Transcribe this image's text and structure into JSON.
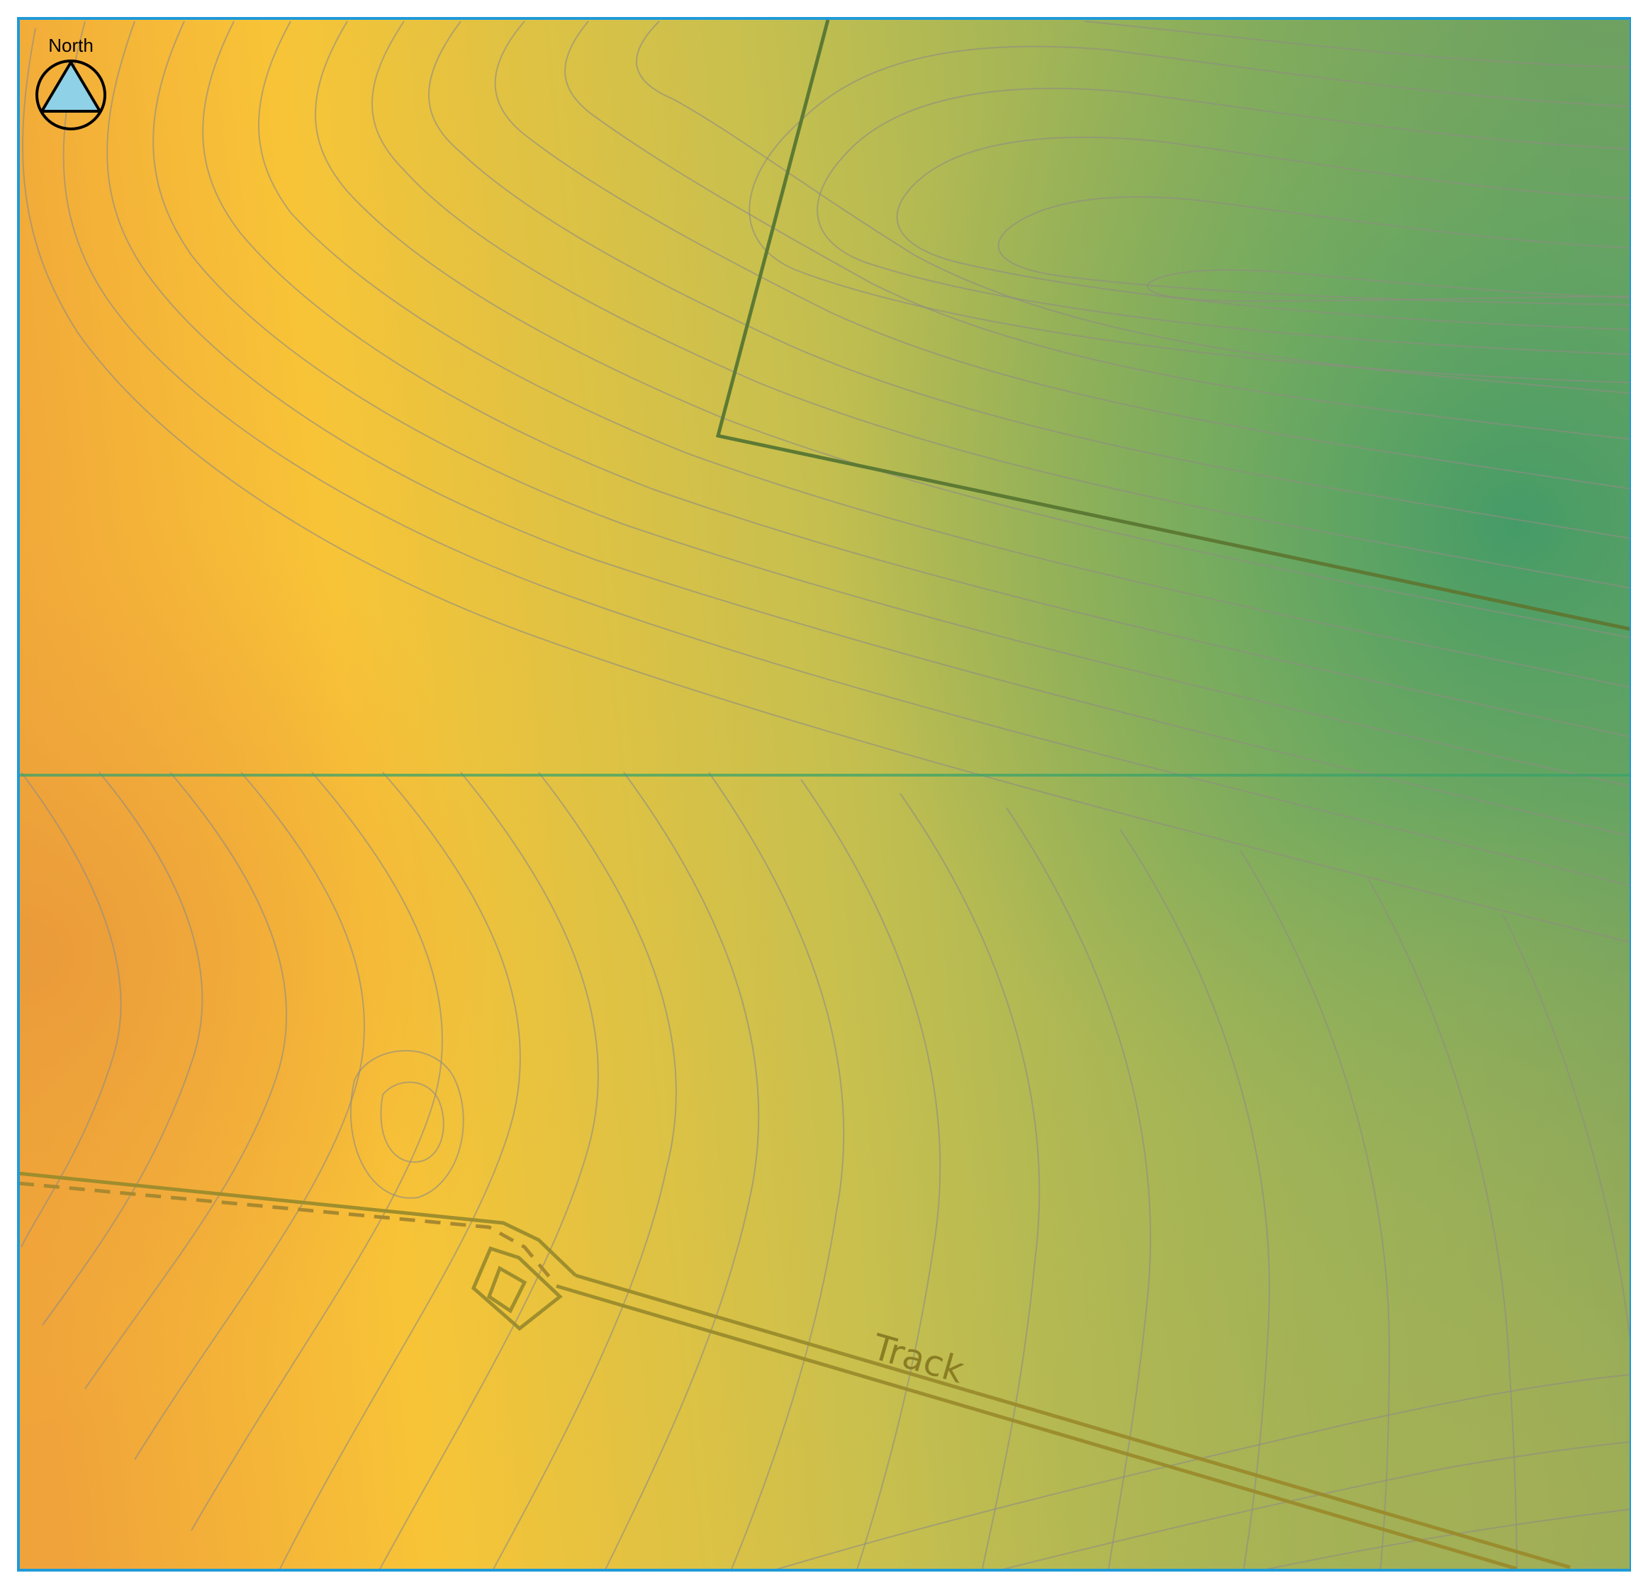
{
  "north_arrow": {
    "label": "North",
    "icon": "north-arrow-icon",
    "fill_color": "#8fd1e6"
  },
  "map": {
    "track_label": "Track",
    "colors": {
      "high_elevation": "#f0a33a",
      "mid_elevation": "#f8c437",
      "low_elevation": "#4f9f68",
      "contour": "#8f8c82",
      "frame": "#1f9ad8",
      "parcel_boundary": "#5d7a34",
      "track": "#9a8b2c",
      "grid_line": "#3aa36a"
    }
  }
}
